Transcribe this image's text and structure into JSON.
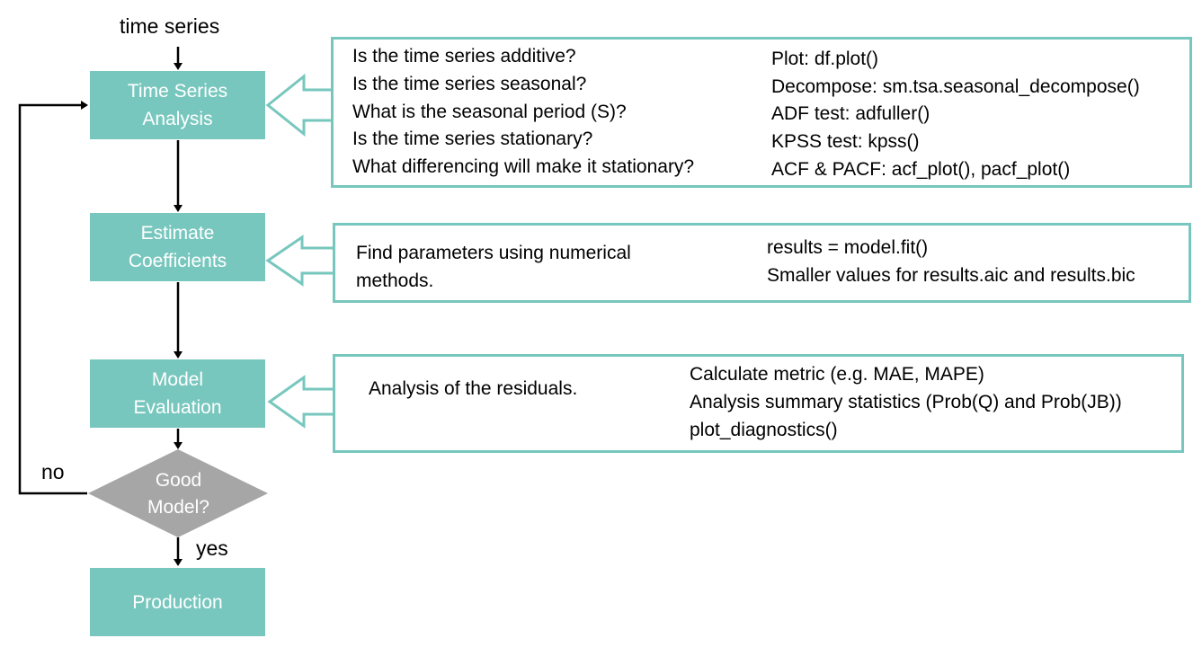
{
  "start_label": "time series",
  "steps": {
    "analysis": "Time Series\nAnalysis",
    "estimate": "Estimate\nCoefficients",
    "evaluation": "Model\nEvaluation",
    "decision": "Good\nModel?",
    "production": "Production"
  },
  "branch_labels": {
    "no": "no",
    "yes": "yes"
  },
  "panels": {
    "analysis": {
      "questions": [
        "Is the time series additive?",
        "Is the time series seasonal?",
        "What is the seasonal period (S)?",
        "Is the time series stationary?",
        "What differencing will make it stationary?"
      ],
      "tools": [
        "Plot: df.plot()",
        "Decompose: sm.tsa.seasonal_decompose()",
        "ADF test: adfuller()",
        "KPSS test: kpss()",
        "ACF & PACF: acf_plot(), pacf_plot()"
      ]
    },
    "estimate": {
      "description": [
        "Find parameters using numerical",
        "methods."
      ],
      "tools": [
        "results = model.fit()",
        "Smaller values for results.aic and results.bic"
      ]
    },
    "evaluation": {
      "description": [
        "Analysis of the residuals."
      ],
      "tools": [
        "Calculate metric (e.g. MAE, MAPE)",
        "Analysis summary statistics (Prob(Q) and Prob(JB))",
        "plot_diagnostics()"
      ]
    }
  },
  "colors": {
    "box": "#78c7be",
    "diamond": "#a6a6a6",
    "line": "#000000"
  }
}
